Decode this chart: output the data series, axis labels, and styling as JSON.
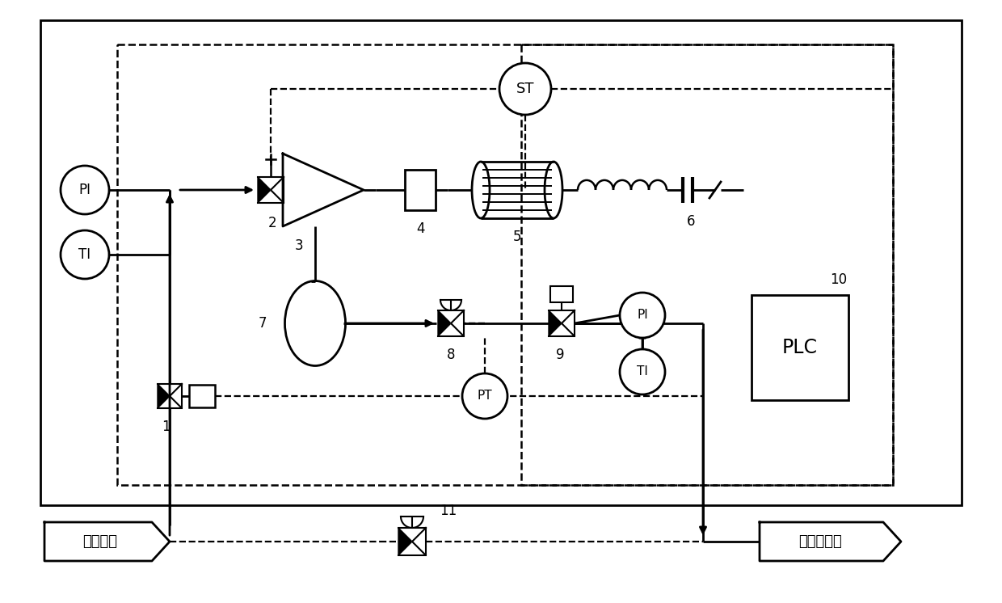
{
  "bg": "#ffffff",
  "fw": 12.4,
  "fh": 7.46,
  "dpi": 100,
  "labels": {
    "PI": "PI",
    "TI": "TI",
    "ST": "ST",
    "PT": "PT",
    "PLC": "PLC",
    "high": "高压管网",
    "midlow": "中低压管网"
  }
}
